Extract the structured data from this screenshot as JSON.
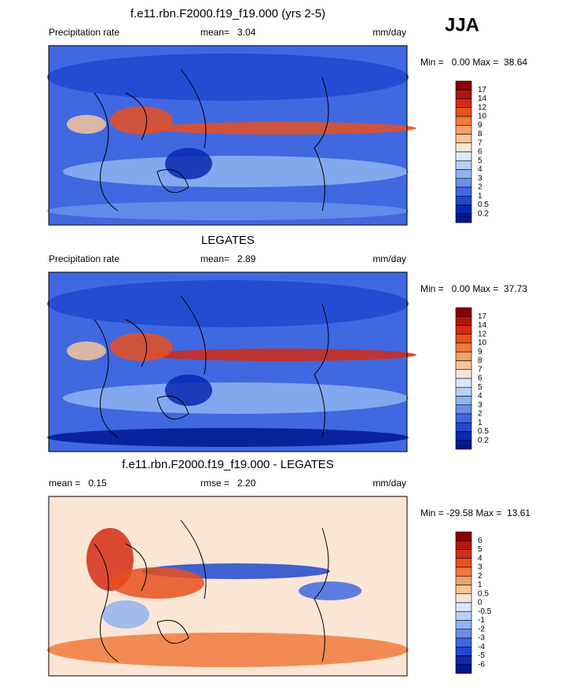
{
  "season": "JJA",
  "panels": [
    {
      "title": "f.e11.rbn.F2000.f19_f19.000 (yrs 2-5)",
      "left_label": "Precipitation rate",
      "center_label": "mean=   3.04",
      "units": "mm/day",
      "min_max": "Min =   0.00 Max =  38.64",
      "colorbar_labels": [
        "17",
        "14",
        "12",
        "10",
        "9",
        "8",
        "7",
        "6",
        "5",
        "4",
        "3",
        "2",
        "1",
        "0.5",
        "0.2"
      ]
    },
    {
      "title": "LEGATES",
      "left_label": "Precipitation rate",
      "center_label": "mean=   2.89",
      "units": "mm/day",
      "min_max": "Min =   0.00 Max =  37.73",
      "colorbar_labels": [
        "17",
        "14",
        "12",
        "10",
        "9",
        "8",
        "7",
        "6",
        "5",
        "4",
        "3",
        "2",
        "1",
        "0.5",
        "0.2"
      ]
    },
    {
      "title": "f.e11.rbn.F2000.f19_f19.000 - LEGATES",
      "left_label": "mean =   0.15",
      "center_label": "rmse =   2.20",
      "units": "mm/day",
      "min_max": "Min = -29.58 Max =  13.61",
      "colorbar_labels": [
        "6",
        "5",
        "4",
        "3",
        "2",
        "1",
        "0.5",
        "0",
        "-0.5",
        "-1",
        "-2",
        "-3",
        "-4",
        "-5",
        "-6"
      ]
    }
  ]
}
